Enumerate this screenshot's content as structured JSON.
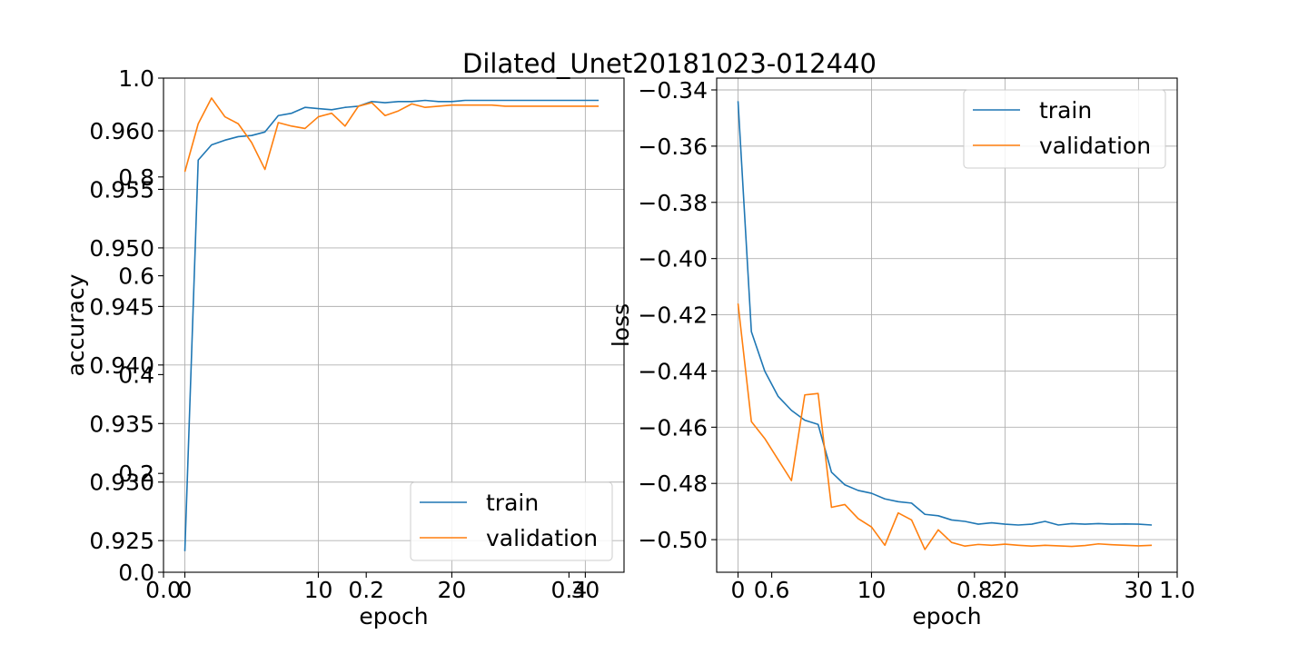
{
  "figure": {
    "title": "Dilated_Unet20181023-012440"
  },
  "colors": {
    "train": "#1f77b4",
    "validation": "#ff7f0e",
    "grid": "#b0b0b0"
  },
  "overlay_axes": {
    "xticks": [
      "0.0",
      "0.2",
      "0.4",
      "0.6",
      "0.8",
      "1.0"
    ],
    "yticks": [
      "0.0",
      "0.2",
      "0.4",
      "0.6",
      "0.8",
      "1.0"
    ]
  },
  "chart_data": [
    {
      "type": "line",
      "title": "",
      "xlabel": "epoch",
      "ylabel": "accuracy",
      "xlim": [
        -1.6,
        32.9
      ],
      "ylim": [
        0.9223,
        0.9645
      ],
      "xticks": [
        0,
        10,
        20,
        30
      ],
      "xtick_labels": [
        "0",
        "10",
        "20",
        "30"
      ],
      "yticks": [
        0.925,
        0.93,
        0.935,
        0.94,
        0.945,
        0.95,
        0.955,
        0.96
      ],
      "ytick_labels": [
        "0.925",
        "0.930",
        "0.935",
        "0.940",
        "0.945",
        "0.950",
        "0.955",
        "0.960"
      ],
      "grid": true,
      "legend": "lower right",
      "x": [
        0,
        1,
        2,
        3,
        4,
        5,
        6,
        7,
        8,
        9,
        10,
        11,
        12,
        13,
        14,
        15,
        16,
        17,
        18,
        19,
        20,
        21,
        22,
        23,
        24,
        25,
        26,
        27,
        28,
        29,
        30,
        31
      ],
      "series": [
        {
          "name": "train",
          "values": [
            0.9241,
            0.9575,
            0.9588,
            0.9592,
            0.9595,
            0.9596,
            0.9599,
            0.9613,
            0.9615,
            0.962,
            0.9619,
            0.9618,
            0.962,
            0.9621,
            0.9625,
            0.9624,
            0.9625,
            0.9625,
            0.9626,
            0.9625,
            0.9625,
            0.9626,
            0.9626,
            0.9626,
            0.9626,
            0.9626,
            0.9626,
            0.9626,
            0.9626,
            0.9626,
            0.9626,
            0.9626
          ]
        },
        {
          "name": "validation",
          "values": [
            0.9565,
            0.9606,
            0.9628,
            0.9612,
            0.9606,
            0.959,
            0.9567,
            0.9607,
            0.9604,
            0.9602,
            0.9612,
            0.9615,
            0.9604,
            0.9621,
            0.9624,
            0.9613,
            0.9617,
            0.9623,
            0.962,
            0.9621,
            0.9622,
            0.9622,
            0.9622,
            0.9622,
            0.9621,
            0.9621,
            0.9621,
            0.9621,
            0.9621,
            0.9621,
            0.9621,
            0.9621
          ]
        }
      ]
    },
    {
      "type": "line",
      "title": "",
      "xlabel": "epoch",
      "ylabel": "loss",
      "xlim": [
        -1.6,
        32.9
      ],
      "ylim": [
        -0.5116,
        -0.3358
      ],
      "xticks": [
        0,
        10,
        20,
        30
      ],
      "xtick_labels": [
        "0",
        "10",
        "20",
        "30"
      ],
      "yticks": [
        -0.5,
        -0.48,
        -0.46,
        -0.44,
        -0.42,
        -0.4,
        -0.38,
        -0.36,
        -0.34
      ],
      "ytick_labels": [
        "−0.50",
        "−0.48",
        "−0.46",
        "−0.44",
        "−0.42",
        "−0.40",
        "−0.38",
        "−0.36",
        "−0.34"
      ],
      "grid": true,
      "legend": "upper right",
      "x": [
        0,
        1,
        2,
        3,
        4,
        5,
        6,
        7,
        8,
        9,
        10,
        11,
        12,
        13,
        14,
        15,
        16,
        17,
        18,
        19,
        20,
        21,
        22,
        23,
        24,
        25,
        26,
        27,
        28,
        29,
        30,
        31
      ],
      "series": [
        {
          "name": "train",
          "values": [
            -0.344,
            -0.426,
            -0.44,
            -0.449,
            -0.454,
            -0.4575,
            -0.459,
            -0.476,
            -0.4805,
            -0.4825,
            -0.4835,
            -0.4855,
            -0.4865,
            -0.487,
            -0.491,
            -0.4915,
            -0.493,
            -0.4935,
            -0.4945,
            -0.494,
            -0.4945,
            -0.4948,
            -0.4945,
            -0.4935,
            -0.4948,
            -0.4943,
            -0.4945,
            -0.4943,
            -0.4945,
            -0.4944,
            -0.4945,
            -0.4948
          ]
        },
        {
          "name": "validation",
          "values": [
            -0.416,
            -0.458,
            -0.464,
            -0.4715,
            -0.479,
            -0.4485,
            -0.448,
            -0.4885,
            -0.4875,
            -0.4925,
            -0.4955,
            -0.502,
            -0.4905,
            -0.493,
            -0.5035,
            -0.4965,
            -0.501,
            -0.5023,
            -0.5017,
            -0.502,
            -0.5016,
            -0.502,
            -0.5023,
            -0.502,
            -0.5022,
            -0.5024,
            -0.5021,
            -0.5015,
            -0.5018,
            -0.502,
            -0.5022,
            -0.502
          ]
        }
      ]
    }
  ]
}
